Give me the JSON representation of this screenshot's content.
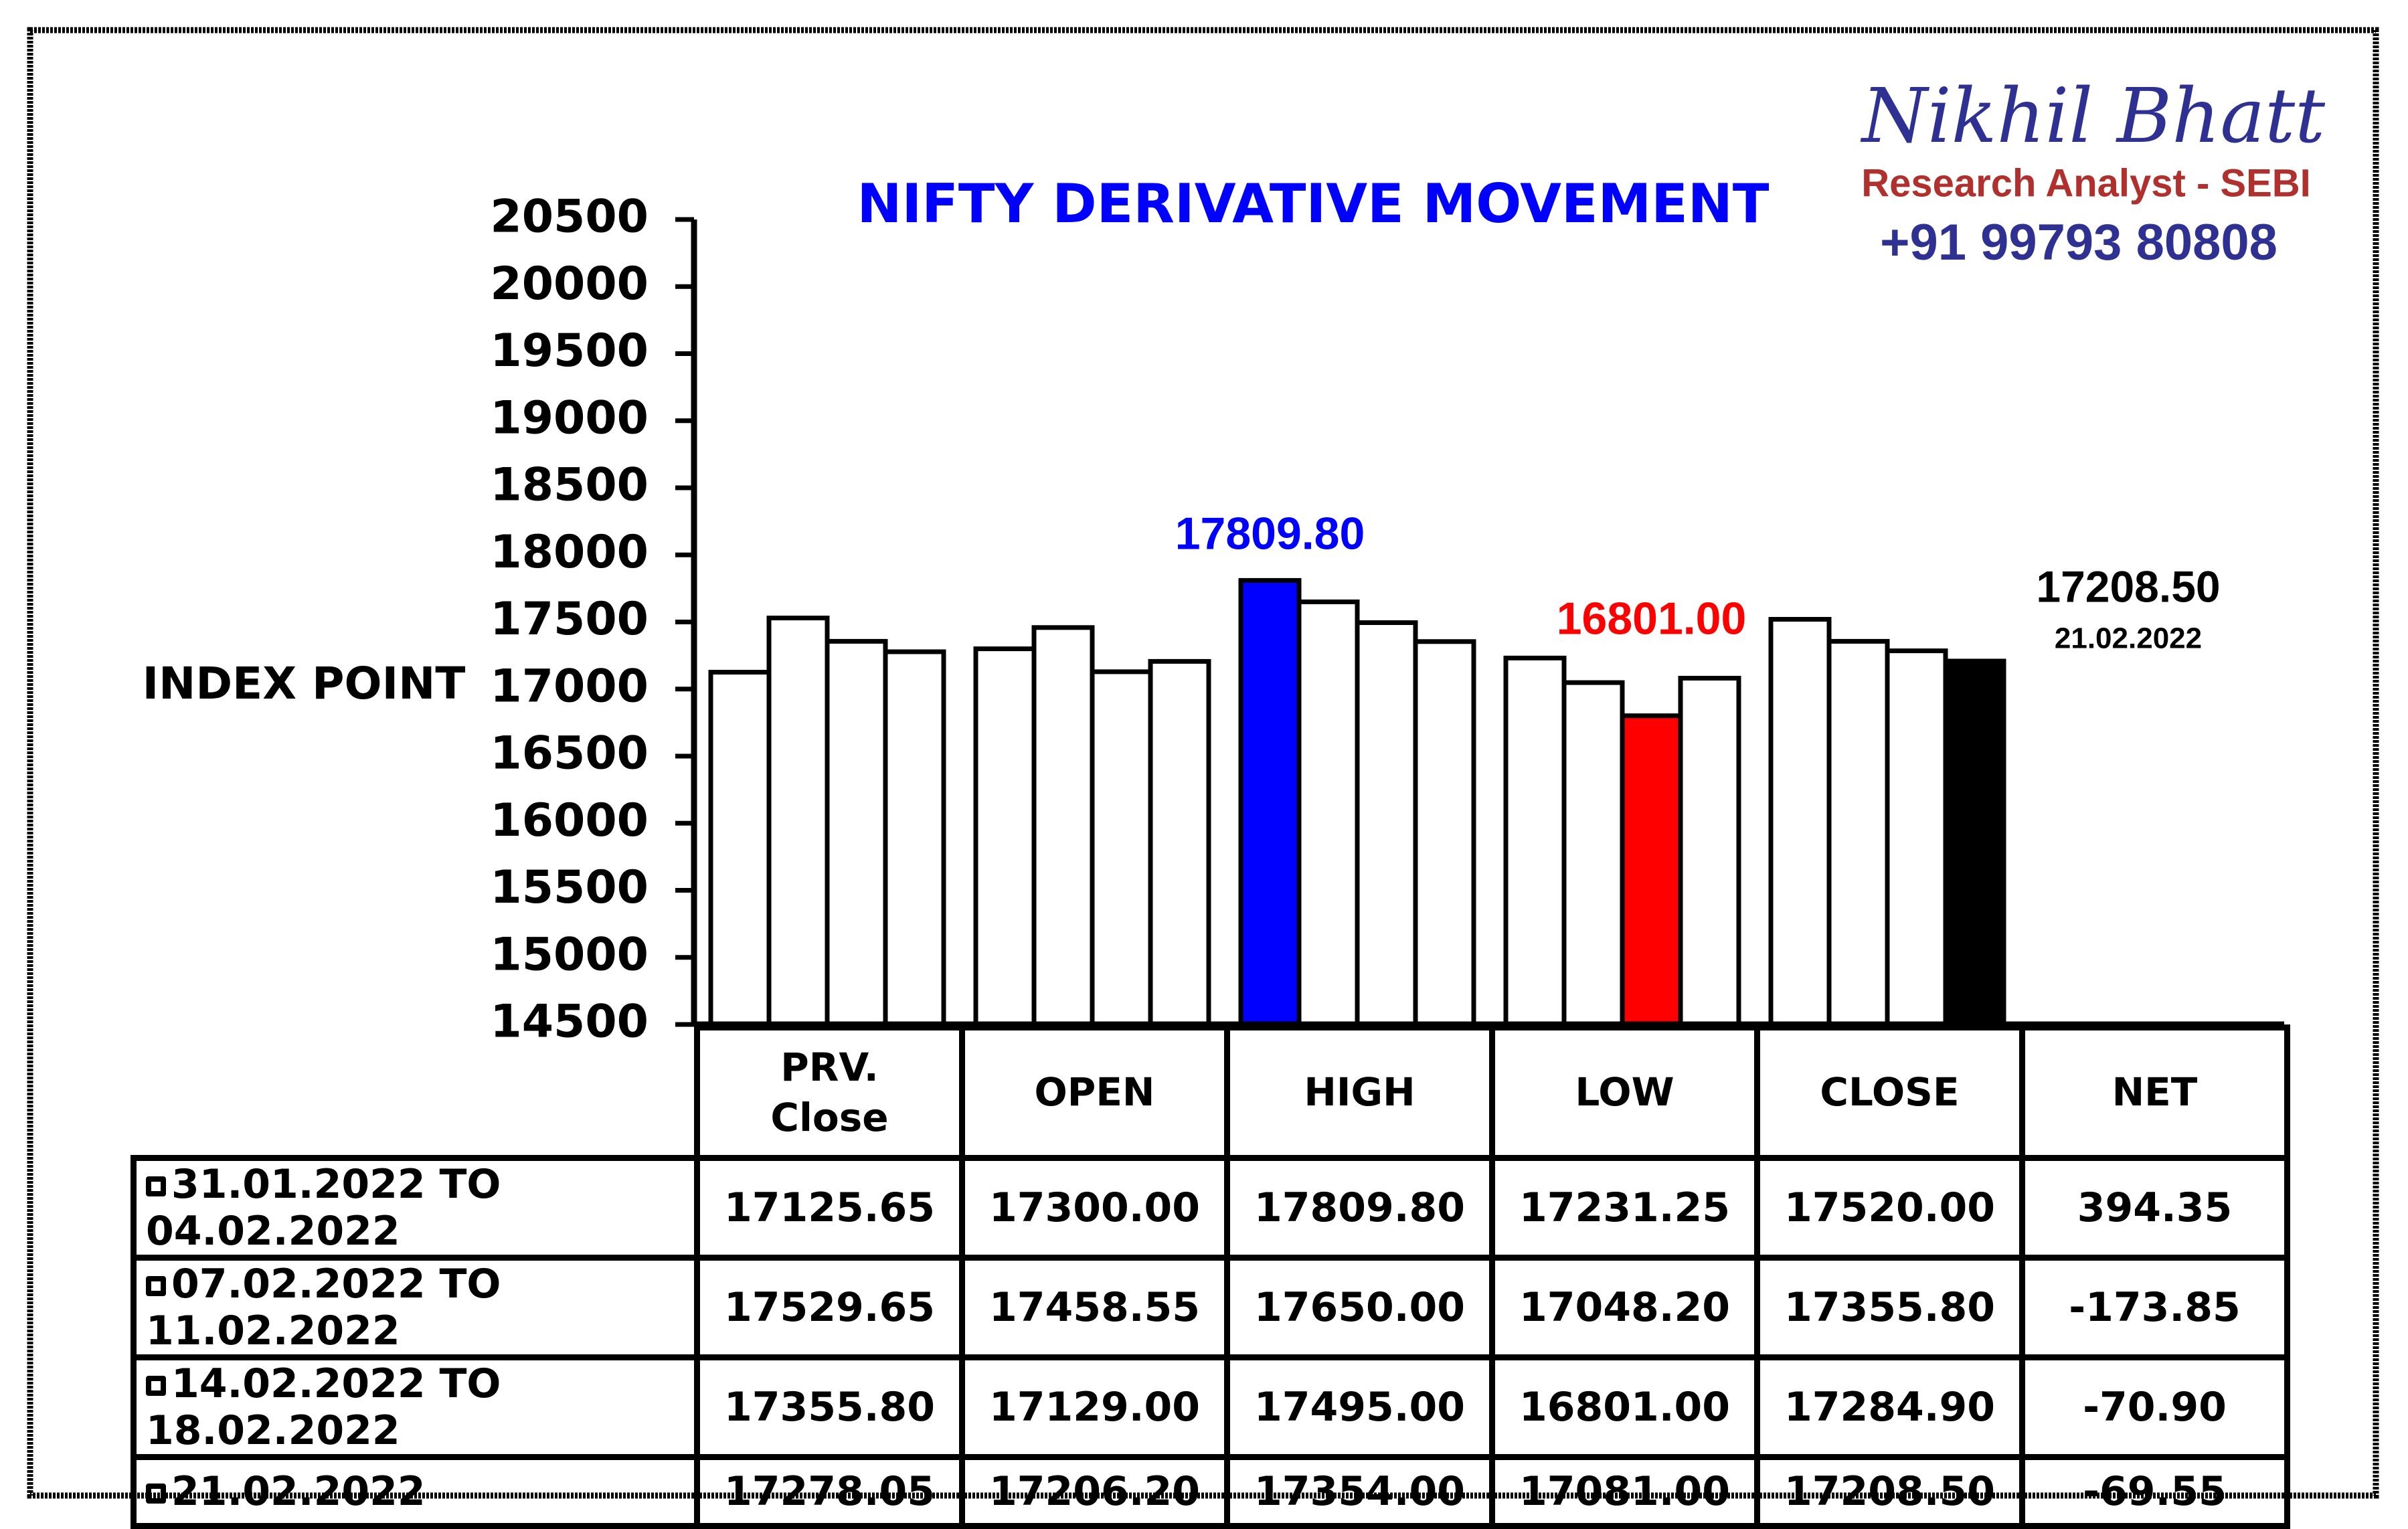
{
  "header": {
    "name": "Nikhil Bhatt",
    "role": "Research Analyst - SEBI",
    "phone": "+91 99793 80808"
  },
  "chart_data": {
    "type": "bar",
    "title": "NIFTY DERIVATIVE MOVEMENT",
    "y_label": "INDEX POINT",
    "categories": [
      "PRV. Close",
      "OPEN",
      "HIGH",
      "LOW",
      "CLOSE",
      "NET"
    ],
    "ylim": [
      14500,
      20500
    ],
    "yticks": [
      14500,
      15000,
      15500,
      16000,
      16500,
      17000,
      17500,
      18000,
      18500,
      19000,
      19500,
      20000,
      20500
    ],
    "series": [
      {
        "name": "31.01.2022 TO 04.02.2022",
        "colors": [
          "#ffffff",
          "#ffffff",
          "#0000ff",
          "#ffffff",
          "#ffffff",
          "#ffffff"
        ],
        "values": [
          17125.65,
          17300,
          17809.8,
          17231.25,
          17520,
          394.35
        ],
        "value_labels": [
          "17125.65",
          "17300.00",
          "17809.80",
          "17231.25",
          "17520.00",
          "394.35"
        ]
      },
      {
        "name": "07.02.2022 TO 11.02.2022",
        "colors": [
          "#ffffff",
          "#ffffff",
          "#ffffff",
          "#ffffff",
          "#ffffff",
          "#ffffff"
        ],
        "values": [
          17529.65,
          17458.55,
          17650,
          17048.2,
          17355.8,
          -173.85
        ],
        "value_labels": [
          "17529.65",
          "17458.55",
          "17650.00",
          "17048.20",
          "17355.80",
          "-173.85"
        ]
      },
      {
        "name": "14.02.2022 TO 18.02.2022",
        "colors": [
          "#ffffff",
          "#ffffff",
          "#ffffff",
          "#ff0000",
          "#ffffff",
          "#ffffff"
        ],
        "values": [
          17355.8,
          17129,
          17495,
          16801,
          17284.9,
          -70.9
        ],
        "value_labels": [
          "17355.80",
          "17129.00",
          "17495.00",
          "16801.00",
          "17284.90",
          "-70.90"
        ]
      },
      {
        "name": "21.02.2022",
        "colors": [
          "#ffffff",
          "#ffffff",
          "#ffffff",
          "#ffffff",
          "#000000",
          "#ffffff"
        ],
        "values": [
          17278.05,
          17206.2,
          17354,
          17081,
          17208.5,
          -69.55
        ],
        "value_labels": [
          "17278.05",
          "17206.20",
          "17354.00",
          "17081.00",
          "17208.50",
          "-69.55"
        ]
      }
    ],
    "annotations": [
      {
        "text": "17809.80",
        "color": "#0000ff"
      },
      {
        "text": "16801.00",
        "color": "#ff0000"
      },
      {
        "text": "17208.50",
        "color": "#000000"
      },
      {
        "text": "21.02.2022",
        "color": "#000000"
      }
    ]
  }
}
